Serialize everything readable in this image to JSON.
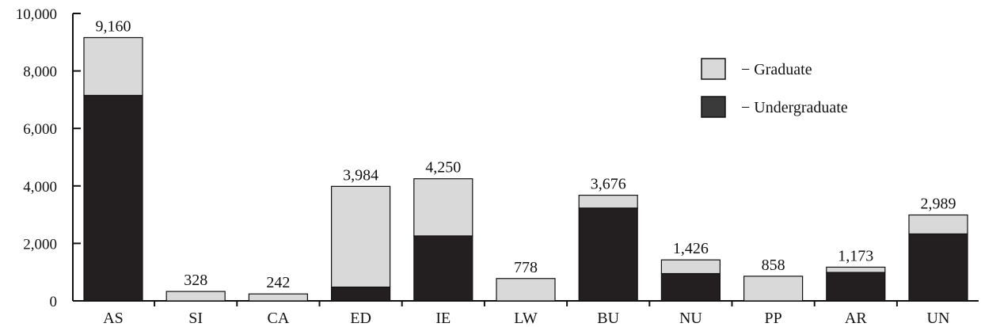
{
  "chart_data": {
    "type": "bar",
    "stacked": true,
    "categories": [
      "AS",
      "SI",
      "CA",
      "ED",
      "IE",
      "LW",
      "BU",
      "NU",
      "PP",
      "AR",
      "UN"
    ],
    "series": [
      {
        "name": "Undergraduate",
        "color": "#231f20",
        "values": [
          7150,
          0,
          0,
          480,
          2260,
          0,
          3230,
          950,
          0,
          990,
          2330
        ]
      },
      {
        "name": "Graduate",
        "color": "#d9d9d9",
        "values": [
          2010,
          328,
          242,
          3504,
          1990,
          778,
          446,
          476,
          858,
          183,
          659
        ]
      }
    ],
    "totals": [
      9160,
      328,
      242,
      3984,
      4250,
      778,
      3676,
      1426,
      858,
      1173,
      2989
    ],
    "total_labels": [
      "9,160",
      "328",
      "242",
      "3,984",
      "4,250",
      "778",
      "3,676",
      "1,426",
      "858",
      "1,173",
      "2,989"
    ],
    "yticks": [
      0,
      2000,
      4000,
      6000,
      8000,
      10000
    ],
    "ytick_labels": [
      "0",
      "2,000",
      "4,000",
      "6,000",
      "8,000",
      "10,000"
    ],
    "ylim": [
      0,
      10000
    ],
    "title": "",
    "xlabel": "",
    "ylabel": "",
    "grid": false,
    "legend": {
      "placement": "top-right",
      "entries": [
        {
          "series": "Graduate",
          "label": "− Graduate",
          "color": "#d9d9d9"
        },
        {
          "series": "Undergraduate",
          "label": "− Undergraduate",
          "color": "#3a3a3a"
        }
      ]
    }
  }
}
